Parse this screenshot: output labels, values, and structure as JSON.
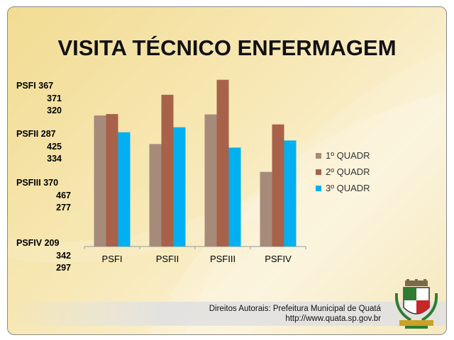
{
  "title": "VISITA TÉCNICO ENFERMAGEM",
  "side_labels": [
    {
      "name": "PSFI",
      "values": [
        "367",
        "371",
        "320"
      ]
    },
    {
      "name": "PSFII",
      "values": [
        "287",
        "425",
        "334"
      ]
    },
    {
      "name": "PSFIII",
      "values": [
        "370",
        "467",
        "277"
      ]
    },
    {
      "name": "PSFIV",
      "values": [
        "209",
        "342",
        "297"
      ]
    }
  ],
  "footer": {
    "line1": "Direitos Autorais: Prefeitura Municipal de Quatá",
    "line2": "http://www.quata.sp.gov.br"
  },
  "chart_data": {
    "type": "bar",
    "title": "VISITA TÉCNICO ENFERMAGEM",
    "categories": [
      "PSFI",
      "PSFII",
      "PSFIII",
      "PSFIV"
    ],
    "series": [
      {
        "name": "1º QUADR",
        "values": [
          367,
          287,
          370,
          209
        ],
        "color": "#a68b7a"
      },
      {
        "name": "2º QUADR",
        "values": [
          371,
          425,
          467,
          342
        ],
        "color": "#a8624a"
      },
      {
        "name": "3º QUADR",
        "values": [
          320,
          334,
          277,
          297
        ],
        "color": "#00b0f0"
      }
    ],
    "ylim": [
      0,
      500
    ],
    "grid": false,
    "legend_position": "right",
    "xlabel": "",
    "ylabel": ""
  }
}
